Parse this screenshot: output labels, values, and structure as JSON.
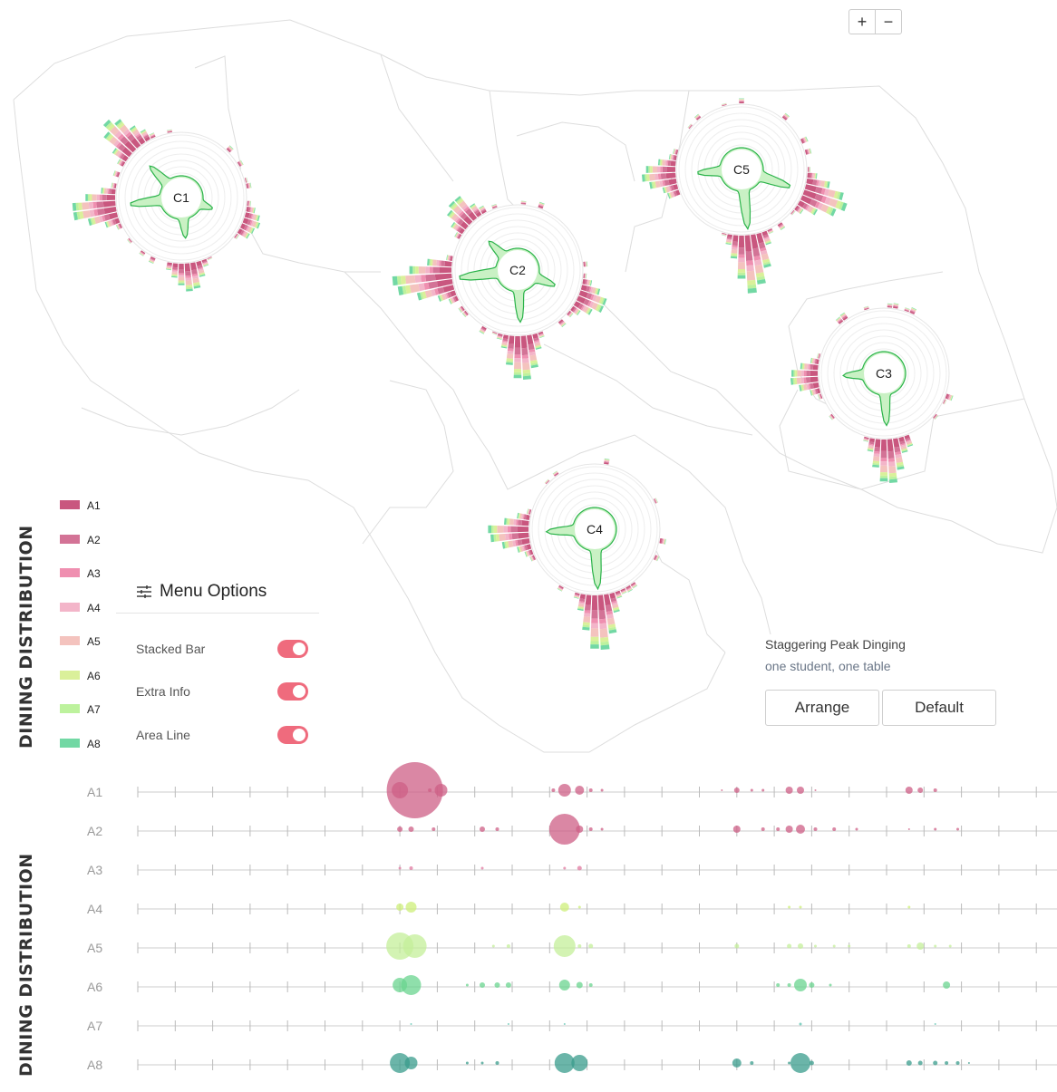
{
  "zoom": {
    "in_label": "+",
    "out_label": "−"
  },
  "titles": {
    "top": "DINING DISTRIBUTION",
    "bottom": "DINING DISTRIBUTION"
  },
  "colors": {
    "A1": "#c9577f",
    "A2": "#d37396",
    "A3": "#ef8fb0",
    "A4": "#f3b5c9",
    "A5": "#f4c3be",
    "A6": "#daf09a",
    "A7": "#bdf29d",
    "A8": "#72d8a4",
    "area_line": "#2bb34a",
    "area_fill": "#c9f1c4"
  },
  "legend": [
    {
      "label": "A1",
      "color": "#c9577f"
    },
    {
      "label": "A2",
      "color": "#d37396"
    },
    {
      "label": "A3",
      "color": "#ef8fb0"
    },
    {
      "label": "A4",
      "color": "#f3b5c9"
    },
    {
      "label": "A5",
      "color": "#f4c3be"
    },
    {
      "label": "A6",
      "color": "#daf09a"
    },
    {
      "label": "A7",
      "color": "#bdf29d"
    },
    {
      "label": "A8",
      "color": "#72d8a4"
    }
  ],
  "menu": {
    "title": "Menu Options",
    "options": [
      {
        "label": "Stacked Bar",
        "on": true
      },
      {
        "label": "Extra Info",
        "on": true
      },
      {
        "label": "Area Line",
        "on": true
      }
    ]
  },
  "info": {
    "title": "Staggering Peak Dinging",
    "subtitle": "one student, one table"
  },
  "buttons": {
    "arrange": "Arrange",
    "default": "Default"
  },
  "chart_data": [
    {
      "type": "radial stacked bar",
      "canteens": [
        {
          "name": "C1",
          "peaks": [
            {
              "hour": 7.3,
              "len": 3
            },
            {
              "hour": 11.6,
              "len": 5
            },
            {
              "hour": 17.5,
              "len": 8
            },
            {
              "hour": 21,
              "len": 6
            }
          ]
        },
        {
          "name": "C2",
          "peaks": [
            {
              "hour": 7.5,
              "len": 5
            },
            {
              "hour": 11.8,
              "len": 8
            },
            {
              "hour": 17.5,
              "len": 10
            },
            {
              "hour": 21,
              "len": 5
            }
          ]
        },
        {
          "name": "C3",
          "peaks": [
            {
              "hour": 11.8,
              "len": 8
            },
            {
              "hour": 17.8,
              "len": 5
            }
          ]
        },
        {
          "name": "C4",
          "peaks": [
            {
              "hour": 11.8,
              "len": 10
            },
            {
              "hour": 17.8,
              "len": 7
            }
          ]
        },
        {
          "name": "C5",
          "peaks": [
            {
              "hour": 7.3,
              "len": 8
            },
            {
              "hour": 11.6,
              "len": 10
            },
            {
              "hour": 17.7,
              "len": 6
            }
          ]
        }
      ]
    },
    {
      "type": "scatter",
      "rows": [
        "A1",
        "A2",
        "A3",
        "A4",
        "A5",
        "A6",
        "A7",
        "A8"
      ],
      "x_ticks": 24,
      "points": [
        {
          "row": "A1",
          "x": 7.4,
          "r": 31
        },
        {
          "row": "A1",
          "x": 7.0,
          "r": 9
        },
        {
          "row": "A1",
          "x": 8.1,
          "r": 7
        },
        {
          "row": "A1",
          "x": 7.8,
          "r": 2
        },
        {
          "row": "A1",
          "x": 11.4,
          "r": 7
        },
        {
          "row": "A1",
          "x": 11.8,
          "r": 5
        },
        {
          "row": "A1",
          "x": 11.1,
          "r": 2
        },
        {
          "row": "A1",
          "x": 12.1,
          "r": 2
        },
        {
          "row": "A1",
          "x": 12.4,
          "r": 1.5
        },
        {
          "row": "A1",
          "x": 16.0,
          "r": 3
        },
        {
          "row": "A1",
          "x": 16.4,
          "r": 1.5
        },
        {
          "row": "A1",
          "x": 16.7,
          "r": 1.5
        },
        {
          "row": "A1",
          "x": 17.4,
          "r": 4
        },
        {
          "row": "A1",
          "x": 17.7,
          "r": 4
        },
        {
          "row": "A1",
          "x": 20.6,
          "r": 4
        },
        {
          "row": "A1",
          "x": 20.9,
          "r": 3
        },
        {
          "row": "A1",
          "x": 21.3,
          "r": 2
        },
        {
          "row": "A1",
          "x": 15.6,
          "r": 1
        },
        {
          "row": "A1",
          "x": 18.1,
          "r": 1
        },
        {
          "row": "A2",
          "x": 11.4,
          "r": 17
        },
        {
          "row": "A2",
          "x": 7.0,
          "r": 3
        },
        {
          "row": "A2",
          "x": 7.3,
          "r": 3
        },
        {
          "row": "A2",
          "x": 7.9,
          "r": 2
        },
        {
          "row": "A2",
          "x": 9.2,
          "r": 3
        },
        {
          "row": "A2",
          "x": 9.6,
          "r": 2
        },
        {
          "row": "A2",
          "x": 11.8,
          "r": 4
        },
        {
          "row": "A2",
          "x": 12.1,
          "r": 2
        },
        {
          "row": "A2",
          "x": 12.4,
          "r": 1.5
        },
        {
          "row": "A2",
          "x": 16.0,
          "r": 4
        },
        {
          "row": "A2",
          "x": 16.7,
          "r": 2
        },
        {
          "row": "A2",
          "x": 17.1,
          "r": 2
        },
        {
          "row": "A2",
          "x": 17.4,
          "r": 4
        },
        {
          "row": "A2",
          "x": 17.7,
          "r": 5
        },
        {
          "row": "A2",
          "x": 18.1,
          "r": 2
        },
        {
          "row": "A2",
          "x": 18.6,
          "r": 2
        },
        {
          "row": "A2",
          "x": 19.2,
          "r": 1.5
        },
        {
          "row": "A2",
          "x": 20.6,
          "r": 1
        },
        {
          "row": "A2",
          "x": 21.3,
          "r": 1.5
        },
        {
          "row": "A2",
          "x": 21.9,
          "r": 1.5
        },
        {
          "row": "A3",
          "x": 7.0,
          "r": 1.5
        },
        {
          "row": "A3",
          "x": 7.3,
          "r": 2
        },
        {
          "row": "A3",
          "x": 9.2,
          "r": 1.5
        },
        {
          "row": "A3",
          "x": 11.4,
          "r": 1.5
        },
        {
          "row": "A3",
          "x": 11.8,
          "r": 2.5
        },
        {
          "row": "A4",
          "x": 7.0,
          "r": 4
        },
        {
          "row": "A4",
          "x": 7.3,
          "r": 6
        },
        {
          "row": "A4",
          "x": 11.4,
          "r": 5
        },
        {
          "row": "A4",
          "x": 11.8,
          "r": 1.5
        },
        {
          "row": "A4",
          "x": 17.4,
          "r": 1.5
        },
        {
          "row": "A4",
          "x": 17.7,
          "r": 1.5
        },
        {
          "row": "A4",
          "x": 20.6,
          "r": 1.5
        },
        {
          "row": "A5",
          "x": 7.0,
          "r": 15
        },
        {
          "row": "A5",
          "x": 7.4,
          "r": 13
        },
        {
          "row": "A5",
          "x": 11.4,
          "r": 12
        },
        {
          "row": "A5",
          "x": 11.8,
          "r": 2
        },
        {
          "row": "A5",
          "x": 12.1,
          "r": 2.5
        },
        {
          "row": "A5",
          "x": 9.5,
          "r": 1.5
        },
        {
          "row": "A5",
          "x": 9.9,
          "r": 2
        },
        {
          "row": "A5",
          "x": 16.0,
          "r": 2.5
        },
        {
          "row": "A5",
          "x": 17.4,
          "r": 2.5
        },
        {
          "row": "A5",
          "x": 17.7,
          "r": 3
        },
        {
          "row": "A5",
          "x": 18.1,
          "r": 1.5
        },
        {
          "row": "A5",
          "x": 18.6,
          "r": 1.5
        },
        {
          "row": "A5",
          "x": 19.0,
          "r": 1.5
        },
        {
          "row": "A5",
          "x": 20.6,
          "r": 2
        },
        {
          "row": "A5",
          "x": 20.9,
          "r": 4
        },
        {
          "row": "A5",
          "x": 21.3,
          "r": 1.5
        },
        {
          "row": "A5",
          "x": 21.7,
          "r": 1.5
        },
        {
          "row": "A6",
          "x": 7.0,
          "r": 8
        },
        {
          "row": "A6",
          "x": 7.3,
          "r": 11
        },
        {
          "row": "A6",
          "x": 9.2,
          "r": 3
        },
        {
          "row": "A6",
          "x": 9.6,
          "r": 3
        },
        {
          "row": "A6",
          "x": 9.9,
          "r": 3
        },
        {
          "row": "A6",
          "x": 8.8,
          "r": 1.5
        },
        {
          "row": "A6",
          "x": 11.4,
          "r": 6
        },
        {
          "row": "A6",
          "x": 11.8,
          "r": 3.5
        },
        {
          "row": "A6",
          "x": 12.1,
          "r": 2
        },
        {
          "row": "A6",
          "x": 17.1,
          "r": 2
        },
        {
          "row": "A6",
          "x": 17.4,
          "r": 2
        },
        {
          "row": "A6",
          "x": 17.7,
          "r": 7
        },
        {
          "row": "A6",
          "x": 18.0,
          "r": 3
        },
        {
          "row": "A6",
          "x": 18.5,
          "r": 1.5
        },
        {
          "row": "A6",
          "x": 21.6,
          "r": 4
        },
        {
          "row": "A7",
          "x": 7.3,
          "r": 1
        },
        {
          "row": "A7",
          "x": 9.9,
          "r": 1
        },
        {
          "row": "A7",
          "x": 11.4,
          "r": 1
        },
        {
          "row": "A7",
          "x": 17.7,
          "r": 1.5
        },
        {
          "row": "A7",
          "x": 21.3,
          "r": 1
        },
        {
          "row": "A8",
          "x": 7.0,
          "r": 11
        },
        {
          "row": "A8",
          "x": 7.3,
          "r": 7
        },
        {
          "row": "A8",
          "x": 8.8,
          "r": 1.5
        },
        {
          "row": "A8",
          "x": 9.2,
          "r": 1.5
        },
        {
          "row": "A8",
          "x": 9.6,
          "r": 2
        },
        {
          "row": "A8",
          "x": 11.4,
          "r": 11
        },
        {
          "row": "A8",
          "x": 11.8,
          "r": 9
        },
        {
          "row": "A8",
          "x": 16.0,
          "r": 5
        },
        {
          "row": "A8",
          "x": 16.4,
          "r": 2
        },
        {
          "row": "A8",
          "x": 17.4,
          "r": 1.5
        },
        {
          "row": "A8",
          "x": 17.7,
          "r": 11
        },
        {
          "row": "A8",
          "x": 18.0,
          "r": 2.5
        },
        {
          "row": "A8",
          "x": 20.6,
          "r": 3
        },
        {
          "row": "A8",
          "x": 20.9,
          "r": 2.5
        },
        {
          "row": "A8",
          "x": 21.3,
          "r": 2.5
        },
        {
          "row": "A8",
          "x": 21.6,
          "r": 2
        },
        {
          "row": "A8",
          "x": 21.9,
          "r": 2
        },
        {
          "row": "A8",
          "x": 22.2,
          "r": 1
        }
      ]
    }
  ]
}
